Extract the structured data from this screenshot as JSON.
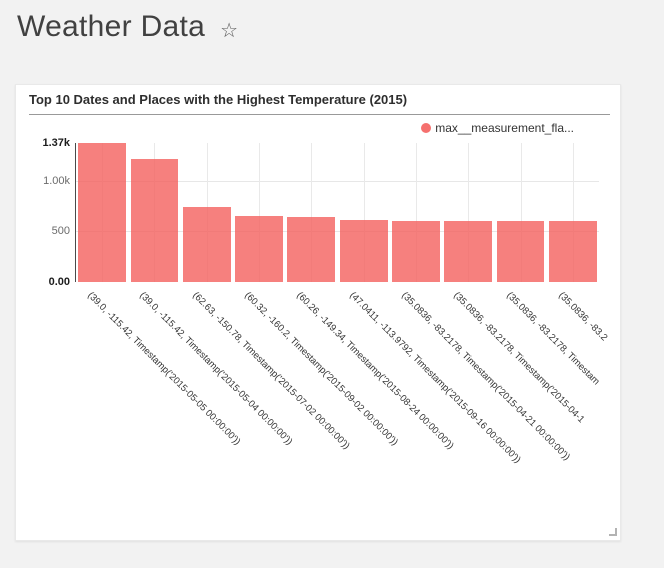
{
  "header": {
    "title": "Weather Data",
    "star_icon": "☆"
  },
  "card": {
    "title": "Top 10 Dates and Places with the Highest Temperature (2015)",
    "legend_label": "max__measurement_fla..."
  },
  "chart_data": {
    "type": "bar",
    "title": "Top 10 Dates and Places with the Highest Temperature (2015)",
    "legend_entries": [
      "max__measurement_fla..."
    ],
    "legend_position": "top-right",
    "grid": true,
    "categories": [
      "(39.0, -115.42, Timestamp('2015-05-05 00:00:00'))",
      "(39.0, -115.42, Timestamp('2015-05-04 00:00:00'))",
      "(62.63, -150.78, Timestamp('2015-07-02 00:00:00'))",
      "(60.32, -160.2, Timestamp('2015-09-02 00:00:00'))",
      "(60.26, -149.34, Timestamp('2015-08-24 00:00:00'))",
      "(47.0411, -113.9792, Timestamp('2015-09-16 00:00:00'))",
      "(35.0836, -83.2178, Timestamp('2015-04-21 00:00:00'))",
      "(35.0836, -83.2178, Timestamp('2015-04-1",
      "(35.0836, -83.2178, Timestam",
      "(35.0836, -83.2"
    ],
    "values": [
      1370,
      1212,
      735,
      646,
      640,
      607,
      599,
      599,
      601,
      603
    ],
    "ylim": [
      0,
      1370
    ],
    "yticks": [
      {
        "label": "1.37k",
        "value": 1370,
        "bold": true,
        "grid": false
      },
      {
        "label": "1.00k",
        "value": 1000,
        "bold": false,
        "grid": true
      },
      {
        "label": "500",
        "value": 500,
        "bold": false,
        "grid": true
      },
      {
        "label": "0.00",
        "value": 0,
        "bold": true,
        "grid": false
      }
    ],
    "colors": {
      "bar": "rgba(244,96,94,0.8)",
      "legend_dot": "#f5706e",
      "gridline": "#e7e7e7",
      "axis_line": "#4a4a4a"
    }
  }
}
